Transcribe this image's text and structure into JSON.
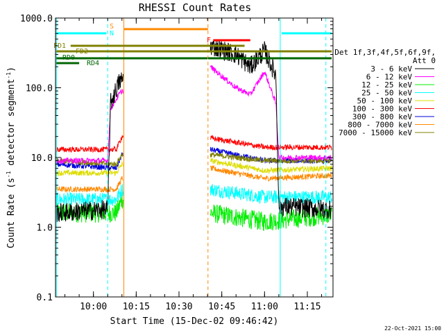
{
  "chart_data": {
    "type": "line",
    "title": "RHESSI Count Rates",
    "xlabel": "Start Time (15-Dec-02 09:46:42)",
    "ylabel_main": "Count Rate (s",
    "ylabel_sup1": "-1",
    "ylabel_mid": " detector segment",
    "ylabel_sup2": "-1",
    "ylabel_end": ")",
    "y_scale": "log",
    "ylim": [
      0.1,
      1000
    ],
    "xlim": [
      "09:46:42",
      "11:24:00"
    ],
    "x_ticks": [
      "10:00",
      "10:15",
      "10:30",
      "10:45",
      "11:00",
      "11:15"
    ],
    "y_ticks": [
      "0.1",
      "1.0",
      "10.0",
      "100.0",
      "1000.0"
    ],
    "legend_header": [
      "Det 1f,3f,4f,5f,6f,9f,",
      "Att 0"
    ],
    "legend_position": "right",
    "series": [
      {
        "name": "3 - 6 keV",
        "color": "#000000",
        "values": [
          {
            "t": "09:47",
            "v": 1.6
          },
          {
            "t": "10:05",
            "v": 1.8
          },
          {
            "t": "10:06",
            "v": 60
          },
          {
            "t": "10:09",
            "v": 120
          },
          {
            "t": "10:10",
            "v": 130
          },
          {
            "t": "10:40",
            "v": 0
          },
          {
            "t": "10:41",
            "v": 400
          },
          {
            "t": "10:50",
            "v": 300
          },
          {
            "t": "10:55",
            "v": 200
          },
          {
            "t": "11:00",
            "v": 340
          },
          {
            "t": "11:04",
            "v": 150
          },
          {
            "t": "11:05",
            "v": 2
          },
          {
            "t": "11:23",
            "v": 1.8
          }
        ]
      },
      {
        "name": "6 - 12 keV",
        "color": "#ff00ff",
        "values": [
          {
            "t": "09:47",
            "v": 9
          },
          {
            "t": "10:05",
            "v": 9
          },
          {
            "t": "10:06",
            "v": 50
          },
          {
            "t": "10:09",
            "v": 80
          },
          {
            "t": "10:10",
            "v": 90
          },
          {
            "t": "10:41",
            "v": 200
          },
          {
            "t": "10:50",
            "v": 100
          },
          {
            "t": "10:55",
            "v": 80
          },
          {
            "t": "11:00",
            "v": 170
          },
          {
            "t": "11:04",
            "v": 60
          },
          {
            "t": "11:05",
            "v": 10
          },
          {
            "t": "11:23",
            "v": 10
          }
        ]
      },
      {
        "name": "12 - 25 keV",
        "color": "#00ee00",
        "values": [
          {
            "t": "09:47",
            "v": 1.6
          },
          {
            "t": "10:08",
            "v": 1.6
          },
          {
            "t": "10:10",
            "v": 2.5
          },
          {
            "t": "10:41",
            "v": 1.6
          },
          {
            "t": "11:00",
            "v": 1.2
          },
          {
            "t": "11:23",
            "v": 1.5
          }
        ]
      },
      {
        "name": "25 - 50 keV",
        "color": "#00ffff",
        "values": [
          {
            "t": "09:47",
            "v": 2.5
          },
          {
            "t": "10:08",
            "v": 2.5
          },
          {
            "t": "10:10",
            "v": 3.5
          },
          {
            "t": "10:41",
            "v": 3.5
          },
          {
            "t": "11:00",
            "v": 2.7
          },
          {
            "t": "11:23",
            "v": 2.7
          }
        ]
      },
      {
        "name": "50 - 100 keV",
        "color": "#dddd00",
        "values": [
          {
            "t": "09:47",
            "v": 6
          },
          {
            "t": "10:08",
            "v": 6
          },
          {
            "t": "10:10",
            "v": 8
          },
          {
            "t": "10:41",
            "v": 9
          },
          {
            "t": "11:00",
            "v": 6.5
          },
          {
            "t": "11:23",
            "v": 7
          }
        ]
      },
      {
        "name": "100 - 300 keV",
        "color": "#ff0000",
        "values": [
          {
            "t": "09:47",
            "v": 13
          },
          {
            "t": "10:08",
            "v": 13
          },
          {
            "t": "10:10",
            "v": 20
          },
          {
            "t": "10:41",
            "v": 19
          },
          {
            "t": "11:00",
            "v": 14
          },
          {
            "t": "11:23",
            "v": 14
          }
        ]
      },
      {
        "name": "300 - 800 keV",
        "color": "#0000dd",
        "values": [
          {
            "t": "09:47",
            "v": 8
          },
          {
            "t": "10:08",
            "v": 7
          },
          {
            "t": "10:10",
            "v": 11
          },
          {
            "t": "10:41",
            "v": 13
          },
          {
            "t": "11:00",
            "v": 9
          },
          {
            "t": "11:23",
            "v": 9
          }
        ]
      },
      {
        "name": "800 - 7000 keV",
        "color": "#ff8800",
        "values": [
          {
            "t": "09:47",
            "v": 3.5
          },
          {
            "t": "10:08",
            "v": 3.5
          },
          {
            "t": "10:10",
            "v": 5
          },
          {
            "t": "10:41",
            "v": 7
          },
          {
            "t": "11:00",
            "v": 5
          },
          {
            "t": "11:23",
            "v": 5.5
          }
        ]
      },
      {
        "name": "7000 - 15000 keV",
        "color": "#808000",
        "values": [
          {
            "t": "09:47",
            "v": 9
          },
          {
            "t": "10:08",
            "v": 8
          },
          {
            "t": "10:10",
            "v": 11
          },
          {
            "t": "10:41",
            "v": 11
          },
          {
            "t": "11:00",
            "v": 9
          },
          {
            "t": "11:23",
            "v": 9
          }
        ]
      }
    ],
    "annotations": {
      "S": {
        "text": "S",
        "color": "#ff8800"
      },
      "N": {
        "text": "N",
        "color": "#00ffff"
      },
      "F": {
        "text": "F",
        "color": "#ff0000"
      },
      "FD1": {
        "text": "FD1",
        "color": "#808000"
      },
      "FD2": {
        "text": "FD2",
        "color": "#808000"
      },
      "RD0": {
        "text": "RD0",
        "color": "#006600"
      },
      "RD4": {
        "text": "RD4",
        "color": "#006600"
      }
    },
    "timestamp": "22-Oct-2021 15:00"
  }
}
